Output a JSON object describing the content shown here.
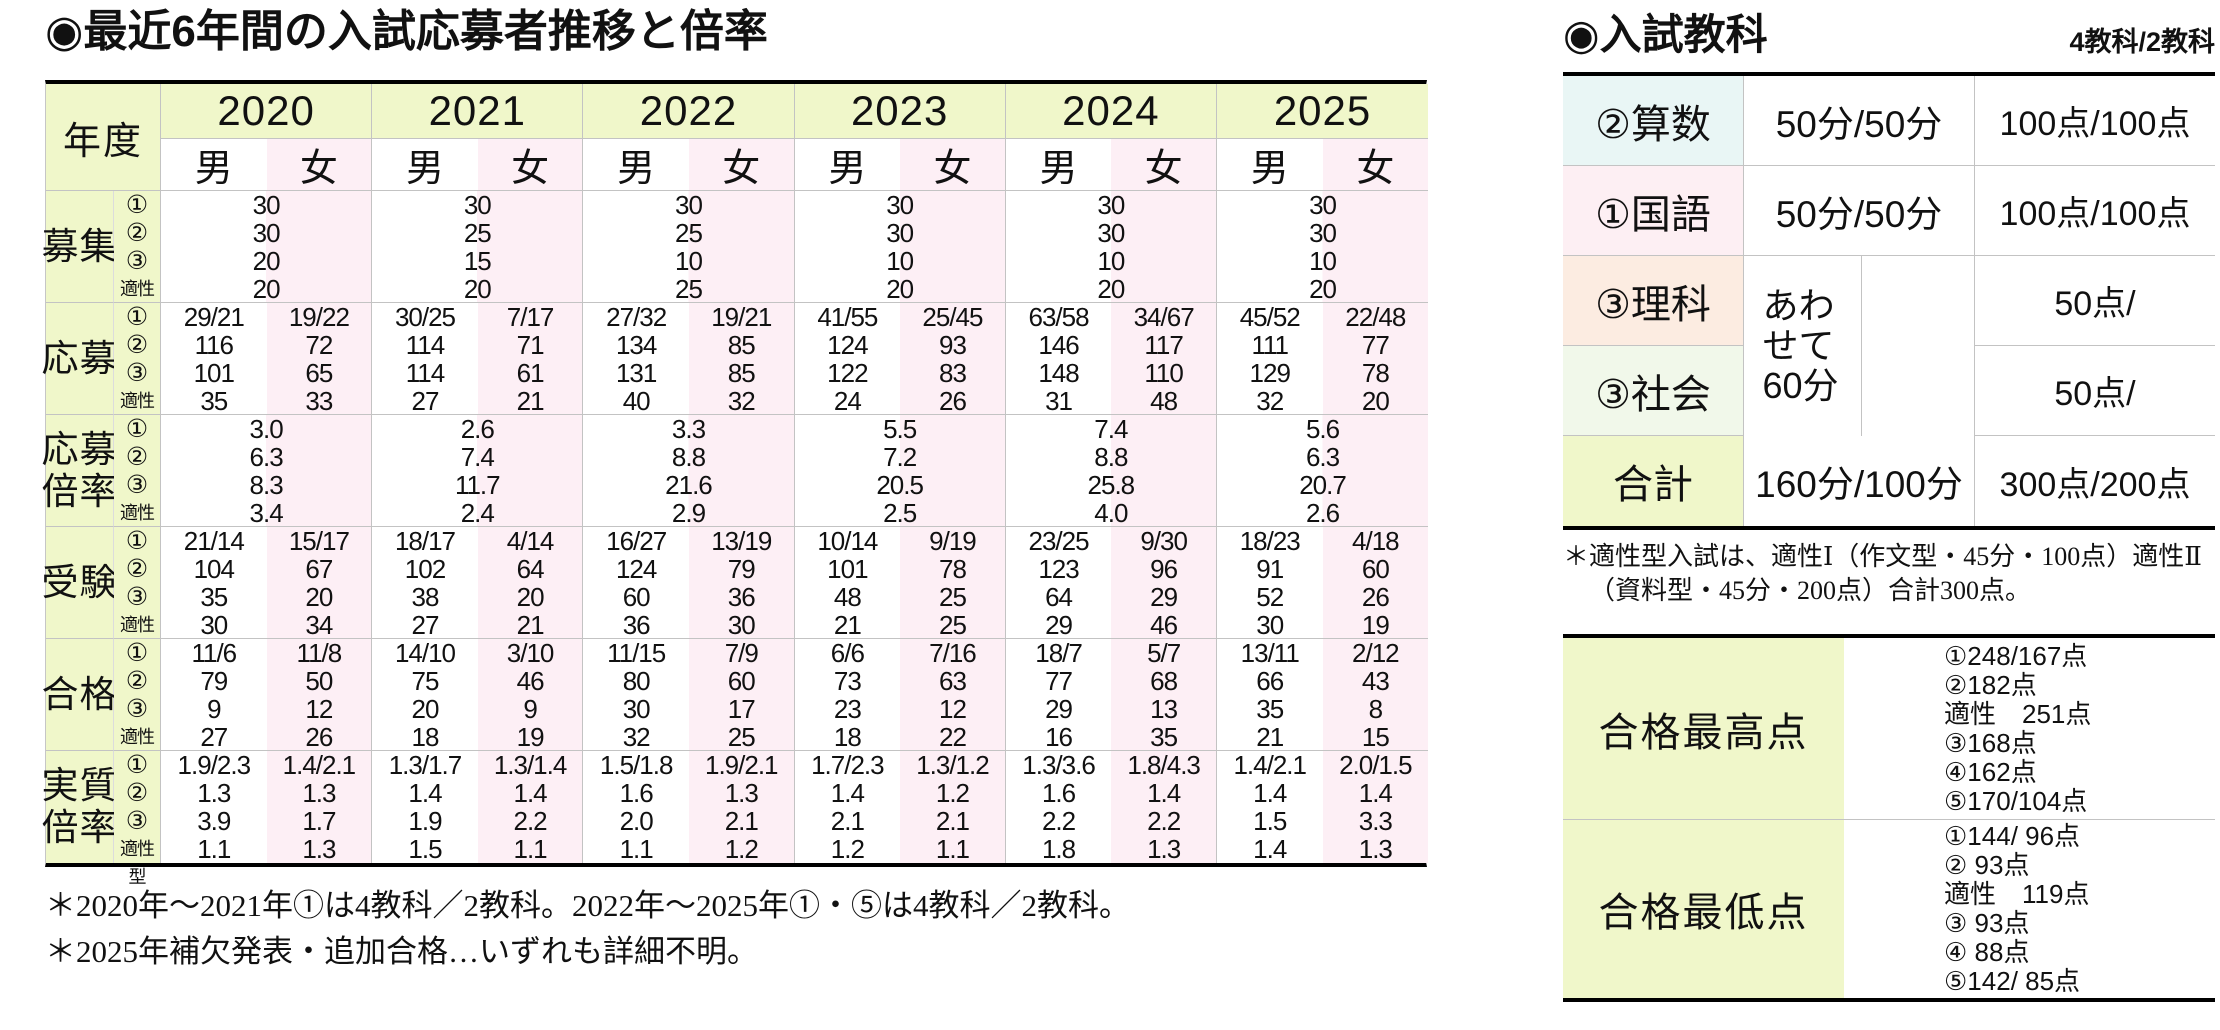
{
  "left": {
    "title": "◉最近6年間の入試応募者推移と倍率",
    "table": {
      "corner_label": "年度",
      "years": [
        "2020",
        "2021",
        "2022",
        "2023",
        "2024",
        "2025"
      ],
      "gender_labels": [
        "男",
        "女"
      ],
      "sub_labels": [
        "①",
        "②",
        "③",
        "適性型"
      ],
      "row_groups": [
        {
          "label": "募集",
          "merged": true,
          "cells": [
            [
              "30",
              "30",
              "20",
              "20"
            ],
            [
              "30",
              "25",
              "15",
              "20"
            ],
            [
              "30",
              "25",
              "10",
              "25"
            ],
            [
              "30",
              "30",
              "10",
              "20"
            ],
            [
              "30",
              "30",
              "10",
              "20"
            ],
            [
              "30",
              "30",
              "10",
              "20"
            ]
          ]
        },
        {
          "label": "応募",
          "merged": false,
          "cells": [
            [
              "29/21",
              "116",
              "101",
              "35"
            ],
            [
              "19/22",
              "72",
              "65",
              "33"
            ],
            [
              "30/25",
              "114",
              "114",
              "27"
            ],
            [
              "7/17",
              "71",
              "61",
              "21"
            ],
            [
              "27/32",
              "134",
              "131",
              "40"
            ],
            [
              "19/21",
              "85",
              "85",
              "32"
            ],
            [
              "41/55",
              "124",
              "122",
              "24"
            ],
            [
              "25/45",
              "93",
              "83",
              "26"
            ],
            [
              "63/58",
              "146",
              "148",
              "31"
            ],
            [
              "34/67",
              "117",
              "110",
              "48"
            ],
            [
              "45/52",
              "111",
              "129",
              "32"
            ],
            [
              "22/48",
              "77",
              "78",
              "20"
            ]
          ]
        },
        {
          "label": "応募倍率",
          "merged": true,
          "cells": [
            [
              "3.0",
              "6.3",
              "8.3",
              "3.4"
            ],
            [
              "2.6",
              "7.4",
              "11.7",
              "2.4"
            ],
            [
              "3.3",
              "8.8",
              "21.6",
              "2.9"
            ],
            [
              "5.5",
              "7.2",
              "20.5",
              "2.5"
            ],
            [
              "7.4",
              "8.8",
              "25.8",
              "4.0"
            ],
            [
              "5.6",
              "6.3",
              "20.7",
              "2.6"
            ]
          ]
        },
        {
          "label": "受験",
          "merged": false,
          "cells": [
            [
              "21/14",
              "104",
              "35",
              "30"
            ],
            [
              "15/17",
              "67",
              "20",
              "34"
            ],
            [
              "18/17",
              "102",
              "38",
              "27"
            ],
            [
              "4/14",
              "64",
              "20",
              "21"
            ],
            [
              "16/27",
              "124",
              "60",
              "36"
            ],
            [
              "13/19",
              "79",
              "36",
              "30"
            ],
            [
              "10/14",
              "101",
              "48",
              "21"
            ],
            [
              "9/19",
              "78",
              "25",
              "25"
            ],
            [
              "23/25",
              "123",
              "64",
              "29"
            ],
            [
              "9/30",
              "96",
              "29",
              "46"
            ],
            [
              "18/23",
              "91",
              "52",
              "30"
            ],
            [
              "4/18",
              "60",
              "26",
              "19"
            ]
          ]
        },
        {
          "label": "合格",
          "merged": false,
          "cells": [
            [
              "11/6",
              "79",
              "9",
              "27"
            ],
            [
              "11/8",
              "50",
              "12",
              "26"
            ],
            [
              "14/10",
              "75",
              "20",
              "18"
            ],
            [
              "3/10",
              "46",
              "9",
              "19"
            ],
            [
              "11/15",
              "80",
              "30",
              "32"
            ],
            [
              "7/9",
              "60",
              "17",
              "25"
            ],
            [
              "6/6",
              "73",
              "23",
              "18"
            ],
            [
              "7/16",
              "63",
              "12",
              "22"
            ],
            [
              "18/7",
              "77",
              "29",
              "16"
            ],
            [
              "5/7",
              "68",
              "13",
              "35"
            ],
            [
              "13/11",
              "66",
              "35",
              "21"
            ],
            [
              "2/12",
              "43",
              "8",
              "15"
            ]
          ]
        },
        {
          "label": "実質倍率",
          "merged": false,
          "cells": [
            [
              "1.9/2.3",
              "1.3",
              "3.9",
              "1.1"
            ],
            [
              "1.4/2.1",
              "1.3",
              "1.7",
              "1.3"
            ],
            [
              "1.3/1.7",
              "1.4",
              "1.9",
              "1.5"
            ],
            [
              "1.3/1.4",
              "1.4",
              "2.2",
              "1.1"
            ],
            [
              "1.5/1.8",
              "1.6",
              "2.0",
              "1.1"
            ],
            [
              "1.9/2.1",
              "1.3",
              "2.1",
              "1.2"
            ],
            [
              "1.7/2.3",
              "1.4",
              "2.1",
              "1.2"
            ],
            [
              "1.3/1.2",
              "1.2",
              "2.1",
              "1.1"
            ],
            [
              "1.3/3.6",
              "1.6",
              "2.2",
              "1.8"
            ],
            [
              "1.8/4.3",
              "1.4",
              "2.2",
              "1.3"
            ],
            [
              "1.4/2.1",
              "1.4",
              "1.5",
              "1.4"
            ],
            [
              "2.0/1.5",
              "1.4",
              "3.3",
              "1.3"
            ]
          ]
        }
      ]
    },
    "footnotes": [
      "＊2020年～2021年①は4教科／2教科。2022年～2025年①・⑤は4教科／2教科。",
      "＊2025年補欠発表・追加合格…いずれも詳細不明。"
    ]
  },
  "right": {
    "title": "◉入試教科",
    "corner_note": "4教科/2教科",
    "subjects": {
      "rows": [
        {
          "label": "②算数",
          "time": "50分/50分",
          "points": "100点/100点"
        },
        {
          "label": "①国語",
          "time": "50分/50分",
          "points": "100点/100点"
        },
        {
          "label": "③理科",
          "points": "50点/"
        },
        {
          "label": "③社会",
          "points": "50点/"
        },
        {
          "label": "合計",
          "time": "160分/100分",
          "points": "300点/200点"
        }
      ],
      "combined_time": "あわせて60分"
    },
    "footnote": "＊適性型入試は、適性Ⅰ（作文型・45分・100点）適性Ⅱ（資料型・45分・200点）合計300点。",
    "scores": [
      {
        "label": "合格最高点",
        "lines": [
          "①248/167点",
          "②182点",
          "適性　251点",
          "③168点",
          "④162点",
          "⑤170/104点"
        ]
      },
      {
        "label": "合格最低点",
        "lines": [
          "①144/ 96点",
          "② 93点",
          "適性　119点",
          "③ 93点",
          "④ 88点",
          "⑤142/ 85点"
        ]
      }
    ]
  },
  "colors": {
    "header_green": "#f0f7ca",
    "female_pink": "#fdeff5",
    "math_cyan": "#e9f6f5",
    "kokugo_pink": "#fdeff3",
    "rika_salmon": "#fcece1",
    "shakai_green": "#f1f8ea",
    "total_green": "#f0f7ca",
    "grid_gray": "#c3c3c3",
    "border_black": "#000000"
  }
}
